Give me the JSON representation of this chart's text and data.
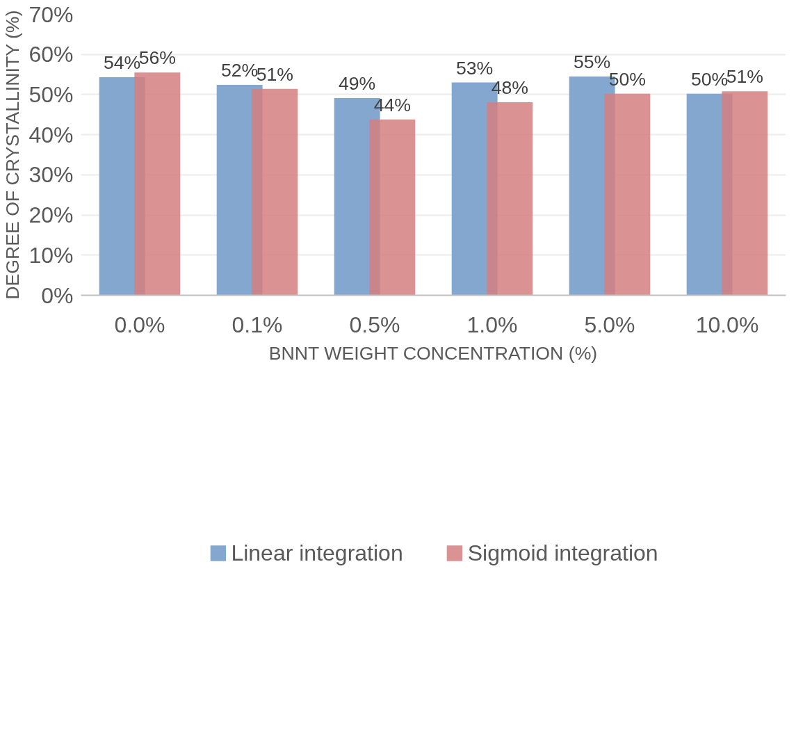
{
  "chart_data": {
    "type": "bar",
    "xlabel": "BNNT WEIGHT CONCENTRATION (%)",
    "ylabel": "DEGREE OF CRYSTALLINITY (%)",
    "categories": [
      "0.0%",
      "0.1%",
      "0.5%",
      "1.0%",
      "5.0%",
      "10.0%"
    ],
    "series": [
      {
        "name": "Linear integration",
        "color": "#84a7cf",
        "values": [
          54.3,
          52.4,
          49.1,
          53.0,
          54.5,
          50.2
        ],
        "value_labels": [
          "54%",
          "52%",
          "49%",
          "53%",
          "55%",
          "50%"
        ]
      },
      {
        "name": "Sigmoid integration",
        "color": "#d47f7f",
        "values": [
          55.5,
          51.4,
          43.8,
          48.1,
          50.2,
          50.8
        ],
        "value_labels": [
          "56%",
          "51%",
          "44%",
          "48%",
          "50%",
          "51%"
        ]
      }
    ],
    "ylim": [
      0,
      70
    ],
    "yticks": [
      {
        "value": 0,
        "label": "0%"
      },
      {
        "value": 10,
        "label": "10%"
      },
      {
        "value": 20,
        "label": "20%"
      },
      {
        "value": 30,
        "label": "30%"
      },
      {
        "value": 40,
        "label": "40%"
      },
      {
        "value": 50,
        "label": "50%"
      },
      {
        "value": 60,
        "label": "60%"
      },
      {
        "value": 70,
        "label": "70%"
      }
    ],
    "grid": "y",
    "legend": "bottom"
  }
}
